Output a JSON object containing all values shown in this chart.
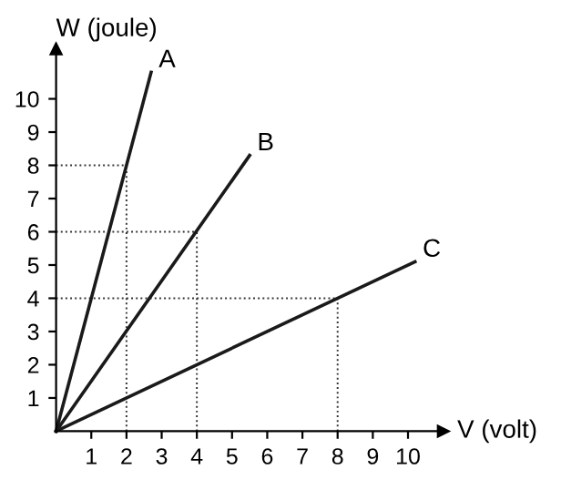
{
  "chart_data": {
    "type": "line",
    "xlabel": "V (volt)",
    "ylabel": "W (joule)",
    "series": [
      {
        "name": "A",
        "color": "#1a1a1a",
        "x": [
          0,
          2.7
        ],
        "values": [
          0,
          10.8
        ]
      },
      {
        "name": "B",
        "color": "#1a1a1a",
        "x": [
          0,
          5.5
        ],
        "values": [
          0,
          8.3
        ]
      },
      {
        "name": "C",
        "color": "#1a1a1a",
        "x": [
          0,
          10.2
        ],
        "values": [
          0,
          5.1
        ]
      }
    ],
    "xlim": [
      0,
      11
    ],
    "ylim": [
      0,
      11.5
    ],
    "xticks": [
      1,
      2,
      3,
      4,
      5,
      6,
      7,
      8,
      9,
      10
    ],
    "yticks": [
      1,
      2,
      3,
      4,
      5,
      6,
      7,
      8,
      9,
      10
    ],
    "ref_lines": [
      {
        "axis": "x",
        "value": 2,
        "line_style": "dotted"
      },
      {
        "axis": "y",
        "value": 8,
        "line_style": "dotted"
      },
      {
        "axis": "x",
        "value": 4,
        "line_style": "dotted"
      },
      {
        "axis": "y",
        "value": 6,
        "line_style": "dotted"
      },
      {
        "axis": "x",
        "value": 8,
        "line_style": "dotted"
      },
      {
        "axis": "y",
        "value": 4,
        "line_style": "dotted"
      }
    ],
    "grid": false,
    "legend": false,
    "marker": "none",
    "line_style": "solid"
  }
}
